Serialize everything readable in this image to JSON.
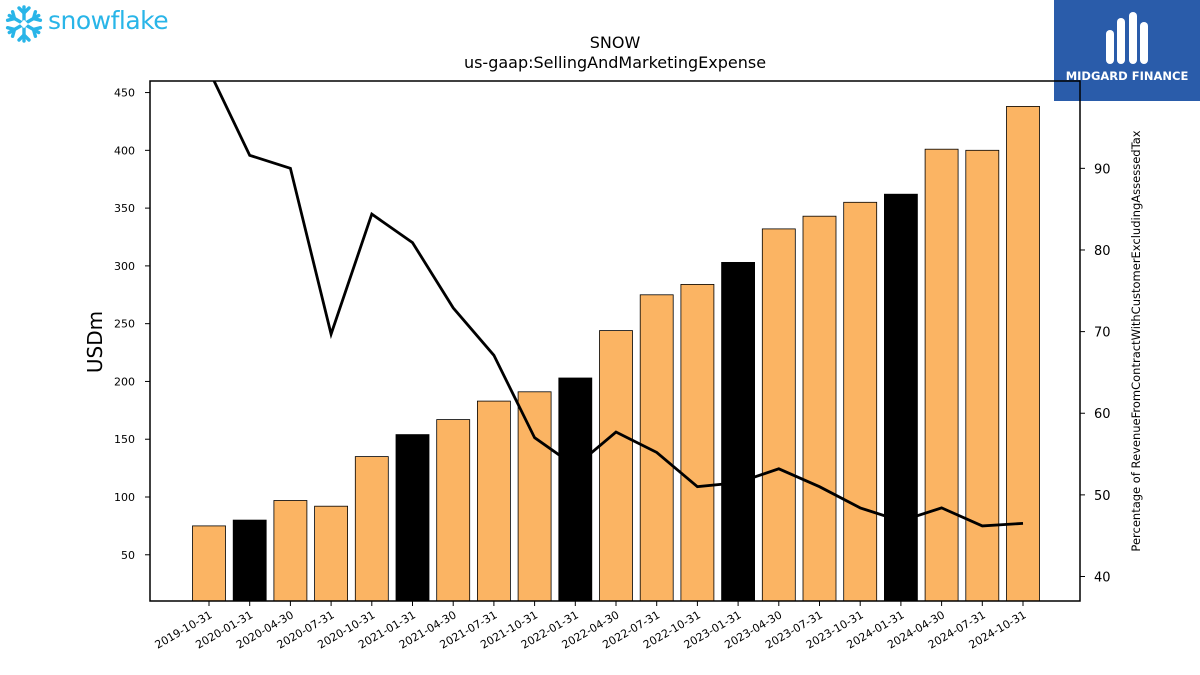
{
  "branding": {
    "left_logo_text": "snowflake",
    "left_logo_color": "#29b5e8",
    "right_logo_text": "MIDGARD FINANCE",
    "right_logo_bg": "#2a5caa"
  },
  "chart_data": {
    "type": "bar",
    "title": "SNOW",
    "subtitle": "us-gaap:SellingAndMarketingExpense",
    "ylabel": "USDm",
    "y2label": "Percentage of RevenueFromContractWithCustomerExcludingAssessedTax",
    "ylim": [
      10,
      460
    ],
    "y2lim": [
      37,
      100.7
    ],
    "yticks": [
      50,
      100,
      150,
      200,
      250,
      300,
      350,
      400,
      450
    ],
    "y2ticks": [
      40,
      50,
      60,
      70,
      80,
      90
    ],
    "categories": [
      "2019-10-31",
      "2020-01-31",
      "2020-04-30",
      "2020-07-31",
      "2020-10-31",
      "2021-01-31",
      "2021-04-30",
      "2021-07-31",
      "2021-10-31",
      "2022-01-31",
      "2022-04-30",
      "2022-07-31",
      "2022-10-31",
      "2023-01-31",
      "2023-04-30",
      "2023-07-31",
      "2023-10-31",
      "2024-01-31",
      "2024-04-30",
      "2024-07-31",
      "2024-10-31"
    ],
    "series": [
      {
        "type": "bar",
        "axis": "left",
        "values": [
          75,
          80,
          97,
          92,
          135,
          154,
          167,
          183,
          191,
          203,
          244,
          275,
          284,
          303,
          332,
          343,
          355,
          362,
          401,
          400,
          438
        ],
        "colors": [
          "#fbb463",
          "#000000",
          "#fbb463",
          "#fbb463",
          "#fbb463",
          "#000000",
          "#fbb463",
          "#fbb463",
          "#fbb463",
          "#000000",
          "#fbb463",
          "#fbb463",
          "#fbb463",
          "#000000",
          "#fbb463",
          "#fbb463",
          "#fbb463",
          "#000000",
          "#fbb463",
          "#fbb463",
          "#fbb463"
        ]
      },
      {
        "type": "line",
        "axis": "right",
        "color": "#000000",
        "values": [
          102,
          91.6,
          90.0,
          69.7,
          84.4,
          80.9,
          72.9,
          67.1,
          57.0,
          53.5,
          57.7,
          55.2,
          51.0,
          51.5,
          53.2,
          51.0,
          48.4,
          46.8,
          48.4,
          46.2,
          46.5
        ]
      }
    ],
    "colors": {
      "bar_default": "#fbb463",
      "bar_highlight": "#000000",
      "line": "#000000"
    },
    "grid": false
  }
}
